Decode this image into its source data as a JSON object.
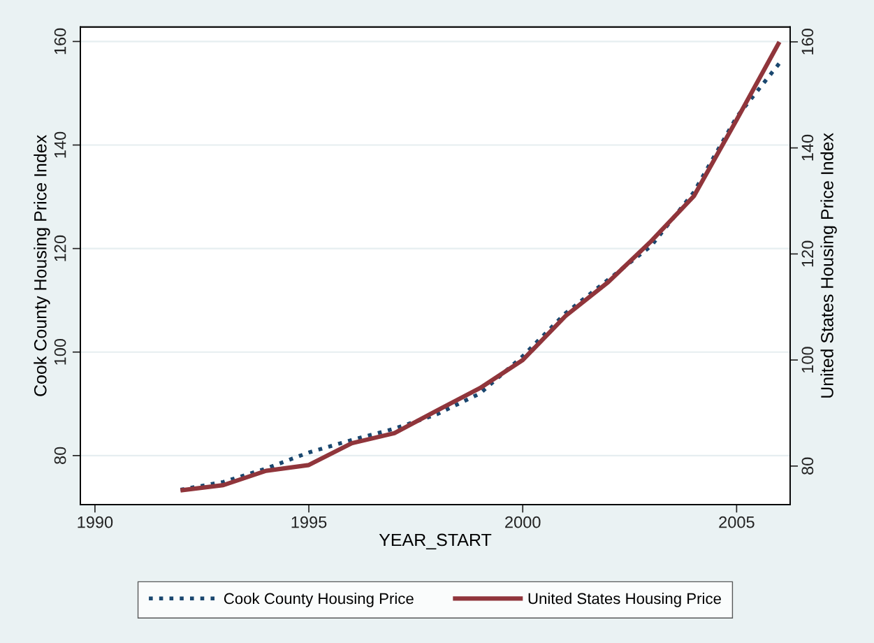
{
  "chart_data": {
    "type": "line",
    "xlabel": "YEAR_START",
    "ylabel": "Cook County Housing Price Index",
    "y2label": "United States Housing Price Index",
    "x": [
      1992,
      1993,
      1994,
      1995,
      1996,
      1997,
      1998,
      1999,
      2000,
      2001,
      2002,
      2003,
      2004,
      2005,
      2006
    ],
    "series": [
      {
        "name": "Cook County Housing Price",
        "color": "#1a476f",
        "line_style": "dotted",
        "values": [
          73.4,
          74.9,
          77.5,
          80.6,
          83.0,
          85.2,
          88.0,
          92.0,
          99.2,
          107.5,
          114.0,
          120.5,
          130.9,
          145.4,
          155.8
        ]
      },
      {
        "name": "United States Housing Price",
        "color": "#90353b",
        "line_style": "solid",
        "axis": "y2",
        "values": [
          75.4,
          76.4,
          79.1,
          80.2,
          84.3,
          86.2,
          90.5,
          94.7,
          100.0,
          108.3,
          114.7,
          122.4,
          130.9,
          145.3,
          160.0
        ]
      }
    ],
    "xlim": [
      1989.66,
      2006.25
    ],
    "xticks": [
      1990,
      1995,
      2000,
      2005
    ],
    "ylim": [
      70.5,
      162.8
    ],
    "yticks": [
      80,
      100,
      120,
      140,
      160
    ],
    "y2lim": [
      72.7,
      162.8
    ],
    "y2ticks": [
      80,
      100,
      120,
      140,
      160
    ],
    "grid": "y",
    "legend": "bottom",
    "marker": "none"
  }
}
